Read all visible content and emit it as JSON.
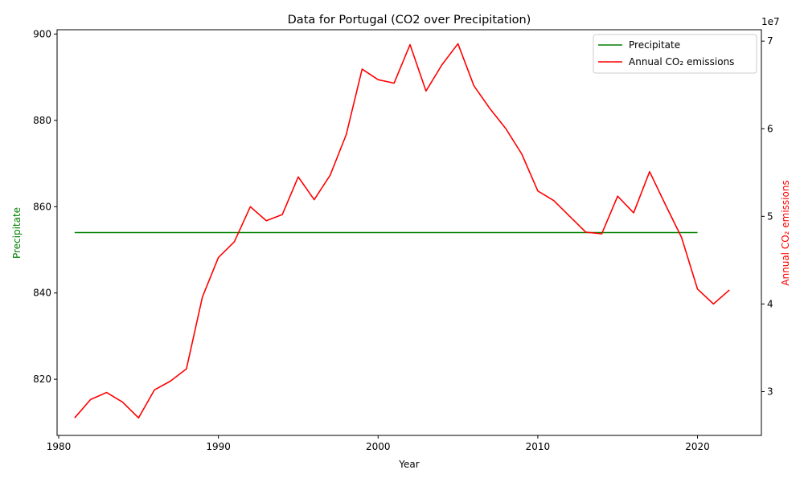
{
  "chart_data": {
    "type": "line",
    "title": "Data for Portugal (CO2 over Precipitation)",
    "xlabel": "Year",
    "ylabel_left": "Precipitate",
    "ylabel_right": "Annual CO₂ emissions",
    "right_axis_multiplier": "1e7",
    "xlim": [
      1979.9,
      2024
    ],
    "ylim_left": [
      807,
      901
    ],
    "ylim_right": [
      25000000,
      71300000
    ],
    "x_ticks": [
      1980,
      1990,
      2000,
      2010,
      2020
    ],
    "y_ticks_left": [
      820,
      840,
      860,
      880,
      900
    ],
    "y_ticks_right": [
      30000000,
      40000000,
      50000000,
      60000000,
      70000000
    ],
    "y_tick_labels_right": [
      "3",
      "4",
      "5",
      "6",
      "7"
    ],
    "legend_position": "top-right",
    "grid": false,
    "series": [
      {
        "name": "Precipitate",
        "axis": "left",
        "color": "#008000",
        "x": [
          1981,
          2020
        ],
        "values": [
          854,
          854
        ]
      },
      {
        "name": "Annual CO₂ emissions",
        "axis": "right",
        "color": "#ff0000",
        "x": [
          1981,
          1982,
          1983,
          1984,
          1985,
          1986,
          1987,
          1988,
          1989,
          1990,
          1991,
          1992,
          1993,
          1994,
          1995,
          1996,
          1997,
          1998,
          1999,
          2000,
          2001,
          2002,
          2003,
          2004,
          2005,
          2006,
          2007,
          2008,
          2009,
          2010,
          2011,
          2012,
          2013,
          2014,
          2015,
          2016,
          2017,
          2018,
          2019,
          2020,
          2021,
          2022
        ],
        "values": [
          27000000,
          29100000,
          29900000,
          28800000,
          27000000,
          30200000,
          31200000,
          32600000,
          40800000,
          45300000,
          47100000,
          51100000,
          49500000,
          50200000,
          54500000,
          51900000,
          54700000,
          59300000,
          66800000,
          65600000,
          65200000,
          69600000,
          64300000,
          67300000,
          69700000,
          64900000,
          62300000,
          60000000,
          57100000,
          52900000,
          51800000,
          50000000,
          48200000,
          48000000,
          52300000,
          50400000,
          55100000,
          51300000,
          47600000,
          41700000,
          40000000,
          41600000
        ]
      }
    ]
  }
}
